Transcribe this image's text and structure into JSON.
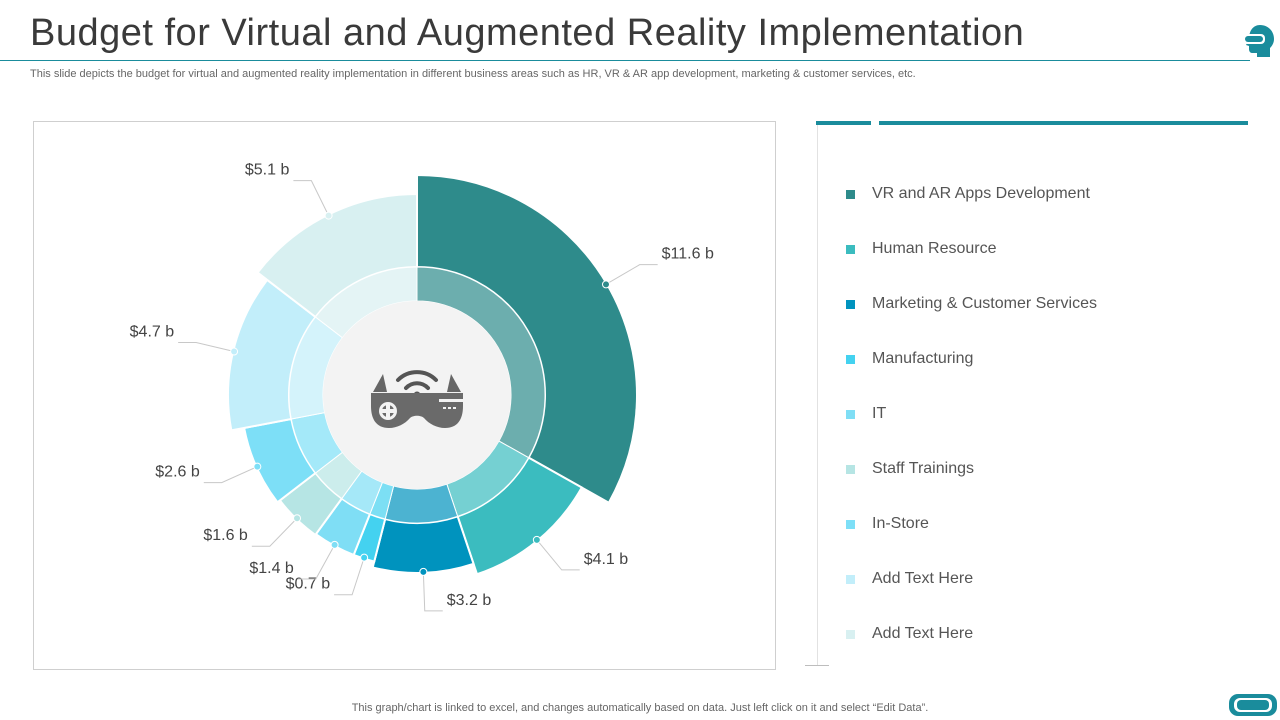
{
  "title": "Budget for Virtual and Augmented Reality Implementation",
  "subtitle": "This slide depicts the budget for virtual and augmented reality implementation in different business areas such as HR, VR & AR app development, marketing & customer services, etc.",
  "footer": "This graph/chart is linked to excel, and changes automatically based on data. Just left click on it and select “Edit Data”.",
  "icons": {
    "center": "vr-glasses-wifi-icon",
    "top_right": "vr-head-icon",
    "bottom_right": "vr-goggles-icon"
  },
  "chart_data": {
    "type": "pie",
    "style": "sunburst-donut",
    "unit": "$ billion",
    "categories": [
      "VR and AR Apps Development",
      "Human Resource",
      "Marketing & Customer Services",
      "Manufacturing",
      "IT",
      "Staff Trainings",
      "In-Store",
      "Add Text Here",
      "Add Text Here"
    ],
    "values": [
      11.6,
      4.1,
      3.2,
      0.7,
      1.4,
      1.6,
      2.6,
      4.7,
      5.1
    ],
    "data_labels": [
      "$11.6 b",
      "$4.1 b",
      "$3.2 b",
      "$0.7 b",
      "$1.4 b",
      "$1.6 b",
      "$2.6 b",
      "$4.7 b",
      "$5.1 b"
    ],
    "colors": [
      "#2e8b8b",
      "#3bbcbf",
      "#0093be",
      "#44d2f0",
      "#7fdef5",
      "#b6e5e4",
      "#7ddff7",
      "#c2eefa",
      "#d8f0f1"
    ],
    "legend_position": "right"
  }
}
